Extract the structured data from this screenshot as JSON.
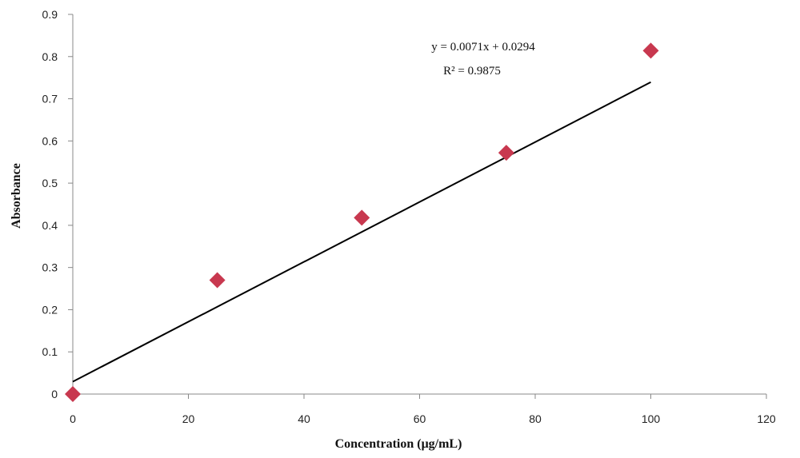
{
  "chart_data": {
    "type": "scatter",
    "xlabel": "Concentration (μg/mL)",
    "ylabel": "Absorbance",
    "xlim": [
      0,
      120
    ],
    "ylim": [
      0,
      0.9
    ],
    "x_ticks": [
      "0",
      "20",
      "40",
      "60",
      "80",
      "100",
      "120"
    ],
    "y_ticks": [
      "0",
      "0.1",
      "0.2",
      "0.3",
      "0.4",
      "0.5",
      "0.6",
      "0.7",
      "0.8",
      "0.9"
    ],
    "grid": false,
    "legend": "none",
    "series": [
      {
        "marker": "diamond",
        "color": "#c8384f",
        "points": [
          {
            "x": 0,
            "y": 0.0
          },
          {
            "x": 25,
            "y": 0.27
          },
          {
            "x": 50,
            "y": 0.418
          },
          {
            "x": 75,
            "y": 0.572
          },
          {
            "x": 100,
            "y": 0.814
          }
        ]
      }
    ],
    "trendline": {
      "slope": 0.0071,
      "intercept": 0.0294,
      "x_range": [
        0,
        100
      ],
      "color": "#000000"
    },
    "annotations": {
      "equation": "y = 0.0071x + 0.0294",
      "r_squared": "R² = 0.9875"
    }
  }
}
